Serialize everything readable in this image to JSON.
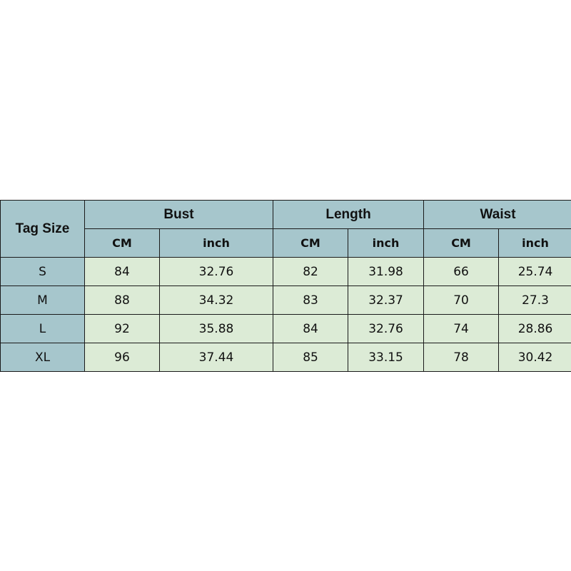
{
  "table": {
    "tag_header": "Tag Size",
    "groups": [
      "Bust",
      "Length",
      "Waist"
    ],
    "units": [
      "CM",
      "inch",
      "CM",
      "inch",
      "CM",
      "inch"
    ],
    "rows": [
      {
        "size": "S",
        "values": [
          "84",
          "32.76",
          "82",
          "31.98",
          "66",
          "25.74"
        ]
      },
      {
        "size": "M",
        "values": [
          "88",
          "34.32",
          "83",
          "32.37",
          "70",
          "27.3"
        ]
      },
      {
        "size": "L",
        "values": [
          "92",
          "35.88",
          "84",
          "32.76",
          "74",
          "28.86"
        ]
      },
      {
        "size": "XL",
        "values": [
          "96",
          "37.44",
          "85",
          "33.15",
          "78",
          "30.42"
        ]
      }
    ]
  },
  "colors": {
    "header": "#a6c6cc",
    "cell": "#dcebd6"
  }
}
